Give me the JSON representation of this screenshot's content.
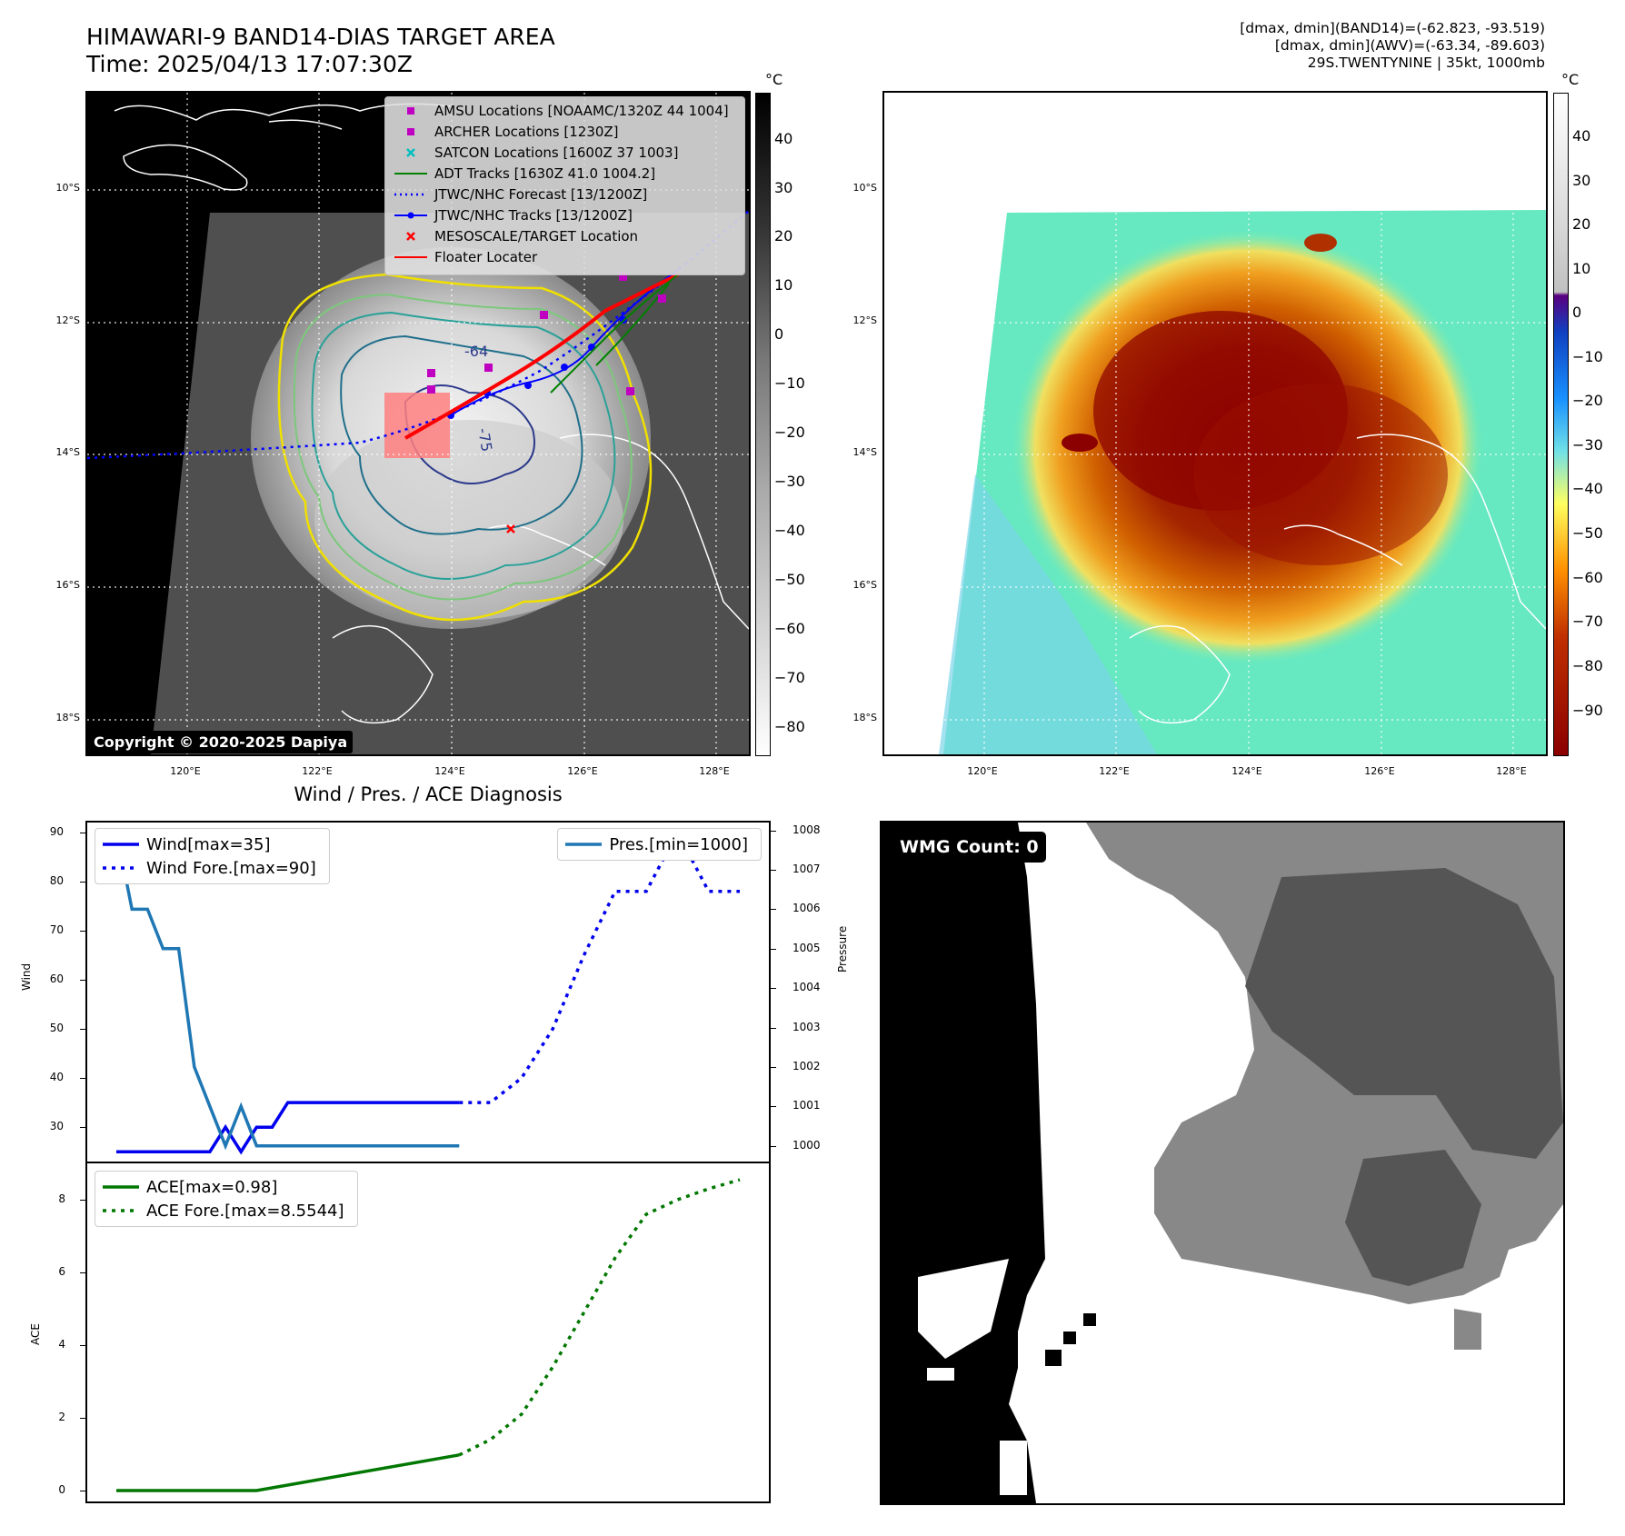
{
  "header": {
    "title_line1": "HIMAWARI-9 BAND14-DIAS TARGET AREA",
    "title_line2": "Time: 2025/04/13 17:07:30Z",
    "info_line1": "[dmax, dmin](BAND14)=(-62.823, -93.519)",
    "info_line2": "[dmax, dmin](AWV)=(-63.34, -89.603)",
    "info_line3": "29S.TWENTYNINE | 35kt, 1000mb"
  },
  "map_axes": {
    "lat_labels": [
      "10°S",
      "12°S",
      "14°S",
      "16°S",
      "18°S"
    ],
    "lon_labels": [
      "120°E",
      "122°E",
      "124°E",
      "126°E",
      "128°E"
    ]
  },
  "colorbar_left": {
    "unit": "°C",
    "ticks": [
      "40",
      "30",
      "20",
      "10",
      "0",
      "−10",
      "−20",
      "−30",
      "−40",
      "−50",
      "−60",
      "−70",
      "−80"
    ]
  },
  "colorbar_right": {
    "unit": "°C",
    "ticks": [
      "40",
      "30",
      "20",
      "10",
      "0",
      "−10",
      "−20",
      "−30",
      "−40",
      "−50",
      "−60",
      "−70",
      "−80",
      "−90"
    ]
  },
  "map_legend": [
    {
      "label": "AMSU Locations [NOAAMC/1320Z 44 1004]",
      "symbol": "square",
      "color": "#c000c0"
    },
    {
      "label": "ARCHER Locations [1230Z]",
      "symbol": "square",
      "color": "#c000c0"
    },
    {
      "label": "SATCON Locations [1600Z 37 1003]",
      "symbol": "x",
      "color": "#00bfbf"
    },
    {
      "label": "ADT Tracks [1630Z 41.0 1004.2]",
      "symbol": "line",
      "color": "#008000"
    },
    {
      "label": "JTWC/NHC Forecast [13/1200Z]",
      "symbol": "dotted",
      "color": "#0000ff"
    },
    {
      "label": "JTWC/NHC Tracks [13/1200Z]",
      "symbol": "line-dot",
      "color": "#0000ff"
    },
    {
      "label": "MESOSCALE/TARGET Location",
      "symbol": "x",
      "color": "#ff0000"
    },
    {
      "label": "Floater Locater",
      "symbol": "line",
      "color": "#ff0000"
    }
  ],
  "copyright": "Copyright © 2020-2025 Dapiya",
  "contour_labels": [
    "-64",
    "-75"
  ],
  "diagnosis": {
    "title": "Wind / Pres. / ACE Diagnosis",
    "wind_ylabel": "Wind",
    "pressure_ylabel": "Pressure",
    "ace_ylabel": "ACE",
    "wind_legend": [
      "Wind[max=35]",
      "Wind Fore.[max=90]"
    ],
    "pres_legend": [
      "Pres.[min=1000]"
    ],
    "ace_legend": [
      "ACE[max=0.98]",
      "ACE Fore.[max=8.5544]"
    ],
    "colors": {
      "wind": "#0000ee",
      "pressure": "#1f77b4",
      "ace": "#007700"
    }
  },
  "wmg": {
    "label": "WMG Count: 0"
  },
  "chart_data": [
    {
      "type": "line",
      "panel": "wind-pressure",
      "x": [
        0,
        1,
        2,
        3,
        4,
        5,
        6,
        7,
        8,
        9,
        10,
        11,
        12,
        13,
        14,
        15,
        16,
        17,
        18,
        19,
        20,
        21,
        22,
        23,
        24,
        25,
        26,
        27,
        28,
        29,
        30,
        31,
        32,
        33,
        34,
        35,
        36,
        37,
        38,
        39,
        40
      ],
      "ylim_left": [
        23,
        92
      ],
      "ylim_right": [
        999.6,
        1008.2
      ],
      "series": [
        {
          "name": "Wind[max=35]",
          "axis": "left",
          "style": "solid",
          "x": [
            0,
            1,
            2,
            3,
            4,
            5,
            6,
            7,
            8,
            9,
            10,
            11,
            12,
            13,
            14,
            15,
            16,
            17,
            18,
            19,
            20,
            21,
            22
          ],
          "values": [
            25,
            25,
            25,
            25,
            25,
            25,
            25,
            30,
            25,
            30,
            30,
            35,
            35,
            35,
            35,
            35,
            35,
            35,
            35,
            35,
            35,
            35,
            35
          ]
        },
        {
          "name": "Wind Fore.[max=90]",
          "axis": "left",
          "style": "dotted",
          "x": [
            22,
            24,
            26,
            28,
            30,
            32,
            34,
            36,
            38,
            40
          ],
          "values": [
            35,
            35,
            40,
            50,
            65,
            78,
            78,
            90,
            78,
            78
          ]
        },
        {
          "name": "Pres.[min=1000]",
          "axis": "right",
          "style": "solid",
          "x": [
            0,
            1,
            2,
            3,
            4,
            5,
            6,
            7,
            8,
            9,
            10,
            11,
            12,
            13,
            14,
            15,
            16,
            17,
            18,
            19,
            20,
            21,
            22
          ],
          "values": [
            1008,
            1006,
            1006,
            1005,
            1005,
            1002,
            1001,
            1000,
            1001,
            1000,
            1000,
            1000,
            1000,
            1000,
            1000,
            1000,
            1000,
            1000,
            1000,
            1000,
            1000,
            1000,
            1000
          ]
        }
      ]
    },
    {
      "type": "line",
      "panel": "ace",
      "ylim": [
        -0.3,
        9.0
      ],
      "series": [
        {
          "name": "ACE[max=0.98]",
          "style": "solid",
          "x": [
            0,
            9,
            22
          ],
          "values": [
            0,
            0,
            0.98
          ]
        },
        {
          "name": "ACE Fore.[max=8.5544]",
          "style": "dotted",
          "x": [
            22,
            24,
            26,
            28,
            30,
            32,
            34,
            36,
            38,
            40
          ],
          "values": [
            0.98,
            1.4,
            2.1,
            3.4,
            4.9,
            6.4,
            7.6,
            8.0,
            8.3,
            8.55
          ]
        }
      ]
    }
  ]
}
